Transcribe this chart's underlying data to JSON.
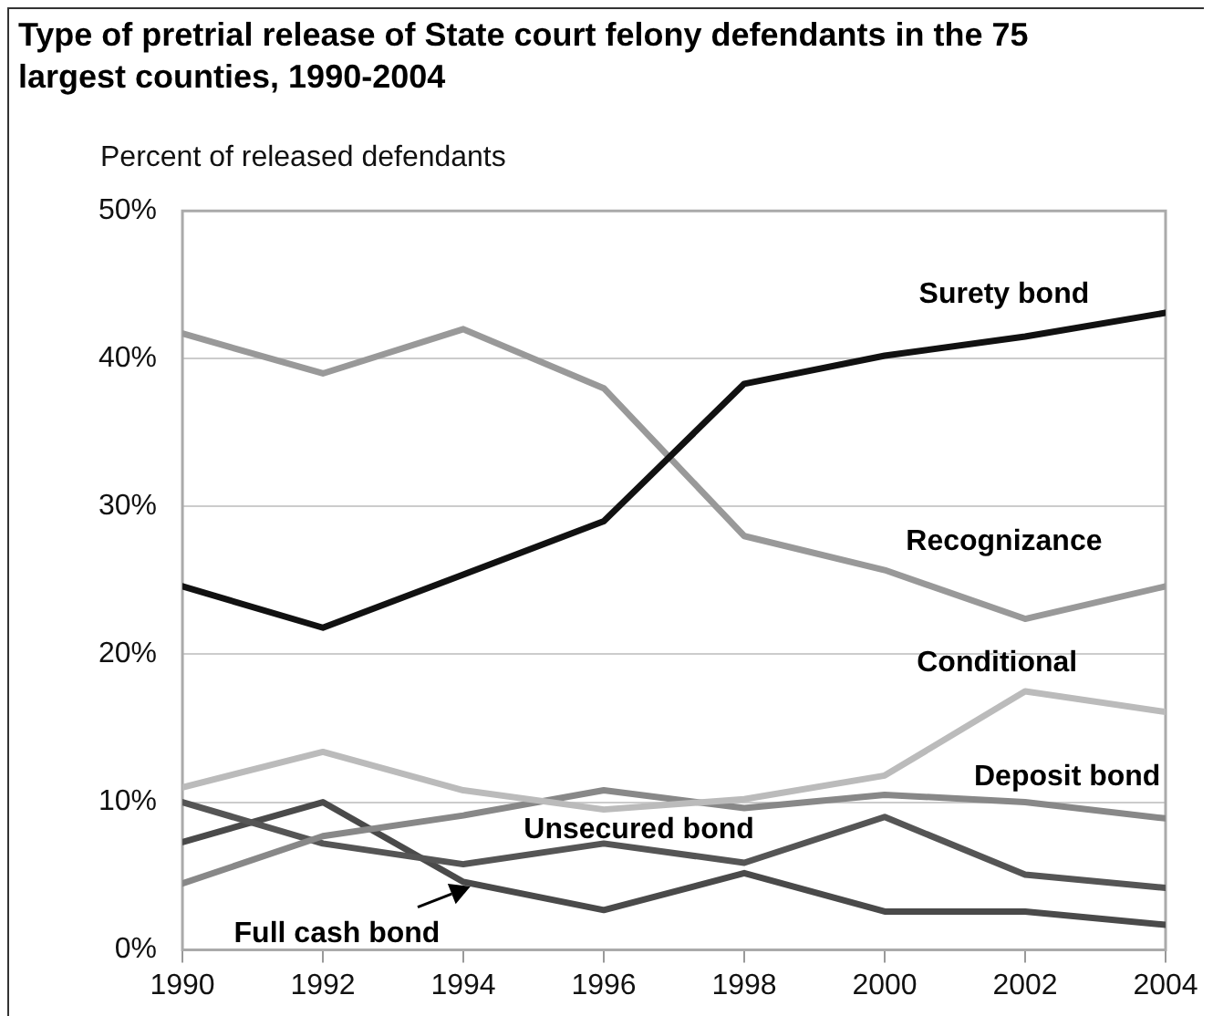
{
  "chart_data": {
    "type": "line",
    "title": "Type of pretrial release of State court felony defendants in the 75 largest counties, 1990-2004",
    "ylabel": "Percent of released defendants",
    "x": [
      1990,
      1992,
      1994,
      1996,
      1998,
      2000,
      2002,
      2004
    ],
    "xlim": [
      1990,
      2004
    ],
    "xticks": [
      1990,
      1992,
      1994,
      1996,
      1998,
      2000,
      2002,
      2004
    ],
    "ylim": [
      0,
      50
    ],
    "yticks": [
      {
        "value": 0,
        "label": "0%"
      },
      {
        "value": 10,
        "label": "10%"
      },
      {
        "value": 20,
        "label": "20%"
      },
      {
        "value": 30,
        "label": "30%"
      },
      {
        "value": 40,
        "label": "40%"
      },
      {
        "value": 50,
        "label": "50%"
      }
    ],
    "grid": "y",
    "legend": false,
    "marker": "none",
    "line_style": "solid",
    "series": [
      {
        "name": "Surety bond",
        "color": "#111111",
        "values": [
          24.6,
          21.8,
          25.4,
          29.0,
          38.3,
          40.2,
          41.5,
          43.1
        ]
      },
      {
        "name": "Recognizance",
        "color": "#999999",
        "values": [
          41.7,
          39.0,
          42.0,
          38.0,
          28.0,
          25.7,
          22.4,
          24.6
        ]
      },
      {
        "name": "Conditional",
        "color": "#bbbbbb",
        "values": [
          11.0,
          13.4,
          10.8,
          9.5,
          10.2,
          11.8,
          17.5,
          16.1
        ]
      },
      {
        "name": "Deposit bond",
        "color": "#888888",
        "values": [
          4.5,
          7.7,
          9.1,
          10.8,
          9.6,
          10.5,
          10.0,
          8.9
        ]
      },
      {
        "name": "Unsecured bond",
        "color": "#555555",
        "values": [
          10.0,
          7.2,
          5.8,
          7.2,
          5.9,
          9.0,
          5.1,
          4.2
        ]
      },
      {
        "name": "Full cash bond",
        "color": "#4a4a4a",
        "values": [
          7.3,
          10.0,
          4.6,
          2.7,
          5.2,
          2.6,
          2.6,
          1.7
        ]
      }
    ]
  }
}
